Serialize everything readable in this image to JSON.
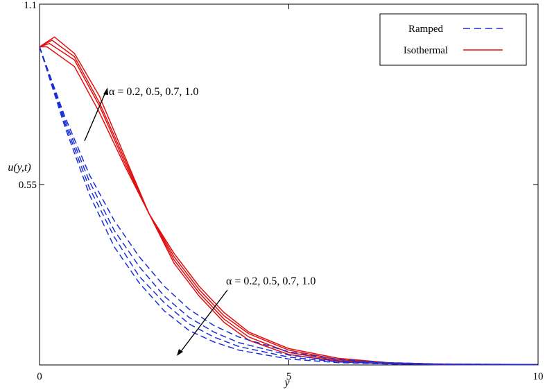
{
  "chart_data": {
    "type": "line",
    "xlabel": "y",
    "ylabel": "u(y,t)",
    "xlim": [
      0,
      10
    ],
    "ylim": [
      0,
      1.1
    ],
    "x_ticks": [
      "0",
      "5",
      "10"
    ],
    "y_ticks": [
      "1.1",
      "0.55"
    ],
    "grid": false,
    "legend_position": "top-right",
    "legend": [
      {
        "label": "Ramped",
        "style": "dashed",
        "color": "#1a2fd6"
      },
      {
        "label": "Isothermal",
        "style": "solid",
        "color": "#e01010"
      }
    ],
    "annotations": [
      {
        "text": "α = 0.2, 0.5, 0.7, 1.0",
        "refers_to": "Isothermal",
        "arrow": "up-right"
      },
      {
        "text": "α = 0.2, 0.5, 0.7, 1.0",
        "refers_to": "Ramped",
        "arrow": "down-left"
      }
    ],
    "series": [
      {
        "group": "Isothermal",
        "color": "#e01010",
        "style": "solid",
        "alpha": 0.2,
        "points": [
          [
            0,
            0.97
          ],
          [
            0.3,
            1.0
          ],
          [
            0.7,
            0.95
          ],
          [
            1.2,
            0.82
          ],
          [
            1.7,
            0.64
          ],
          [
            2.2,
            0.46
          ],
          [
            2.7,
            0.34
          ],
          [
            3.2,
            0.24
          ],
          [
            3.7,
            0.16
          ],
          [
            4.2,
            0.1
          ],
          [
            5,
            0.05
          ],
          [
            6,
            0.02
          ],
          [
            7,
            0.007
          ],
          [
            8,
            0.003
          ],
          [
            10,
            0.001
          ]
        ]
      },
      {
        "group": "Isothermal",
        "color": "#e01010",
        "style": "solid",
        "alpha": 0.5,
        "points": [
          [
            0,
            0.97
          ],
          [
            0.25,
            0.99
          ],
          [
            0.7,
            0.94
          ],
          [
            1.2,
            0.8
          ],
          [
            1.7,
            0.63
          ],
          [
            2.2,
            0.46
          ],
          [
            2.7,
            0.33
          ],
          [
            3.2,
            0.23
          ],
          [
            3.7,
            0.15
          ],
          [
            4.2,
            0.095
          ],
          [
            5,
            0.045
          ],
          [
            6,
            0.016
          ],
          [
            7,
            0.006
          ],
          [
            8,
            0.002
          ],
          [
            10,
            0.001
          ]
        ]
      },
      {
        "group": "Isothermal",
        "color": "#e01010",
        "style": "solid",
        "alpha": 0.7,
        "points": [
          [
            0,
            0.97
          ],
          [
            0.2,
            0.98
          ],
          [
            0.7,
            0.93
          ],
          [
            1.2,
            0.79
          ],
          [
            1.7,
            0.62
          ],
          [
            2.2,
            0.46
          ],
          [
            2.7,
            0.32
          ],
          [
            3.2,
            0.22
          ],
          [
            3.7,
            0.14
          ],
          [
            4.2,
            0.085
          ],
          [
            5,
            0.038
          ],
          [
            6,
            0.013
          ],
          [
            7,
            0.005
          ],
          [
            8,
            0.002
          ],
          [
            10,
            0.001
          ]
        ]
      },
      {
        "group": "Isothermal",
        "color": "#e01010",
        "style": "solid",
        "alpha": 1.0,
        "points": [
          [
            0,
            0.97
          ],
          [
            0.15,
            0.97
          ],
          [
            0.7,
            0.91
          ],
          [
            1.2,
            0.77
          ],
          [
            1.7,
            0.61
          ],
          [
            2.2,
            0.46
          ],
          [
            2.7,
            0.31
          ],
          [
            3.2,
            0.21
          ],
          [
            3.7,
            0.13
          ],
          [
            4.2,
            0.075
          ],
          [
            5,
            0.032
          ],
          [
            6,
            0.01
          ],
          [
            7,
            0.004
          ],
          [
            8,
            0.001
          ],
          [
            10,
            0.0005
          ]
        ]
      },
      {
        "group": "Ramped",
        "color": "#1a2fd6",
        "style": "dashed",
        "alpha": 0.2,
        "points": [
          [
            0,
            0.97
          ],
          [
            0.5,
            0.76
          ],
          [
            1,
            0.58
          ],
          [
            1.5,
            0.44
          ],
          [
            2,
            0.33
          ],
          [
            2.5,
            0.24
          ],
          [
            3,
            0.17
          ],
          [
            3.5,
            0.12
          ],
          [
            4,
            0.085
          ],
          [
            5,
            0.04
          ],
          [
            6,
            0.017
          ],
          [
            7,
            0.007
          ],
          [
            8,
            0.003
          ],
          [
            10,
            0.001
          ]
        ]
      },
      {
        "group": "Ramped",
        "color": "#1a2fd6",
        "style": "dashed",
        "alpha": 0.5,
        "points": [
          [
            0,
            0.97
          ],
          [
            0.5,
            0.75
          ],
          [
            1,
            0.56
          ],
          [
            1.5,
            0.41
          ],
          [
            2,
            0.3
          ],
          [
            2.5,
            0.21
          ],
          [
            3,
            0.145
          ],
          [
            3.5,
            0.1
          ],
          [
            4,
            0.068
          ],
          [
            5,
            0.03
          ],
          [
            6,
            0.012
          ],
          [
            7,
            0.005
          ],
          [
            8,
            0.002
          ],
          [
            10,
            0.001
          ]
        ]
      },
      {
        "group": "Ramped",
        "color": "#1a2fd6",
        "style": "dashed",
        "alpha": 0.7,
        "points": [
          [
            0,
            0.97
          ],
          [
            0.5,
            0.74
          ],
          [
            1,
            0.54
          ],
          [
            1.5,
            0.39
          ],
          [
            2,
            0.27
          ],
          [
            2.5,
            0.19
          ],
          [
            3,
            0.125
          ],
          [
            3.5,
            0.085
          ],
          [
            4,
            0.056
          ],
          [
            5,
            0.024
          ],
          [
            6,
            0.009
          ],
          [
            7,
            0.004
          ],
          [
            8,
            0.0015
          ],
          [
            10,
            0.0005
          ]
        ]
      },
      {
        "group": "Ramped",
        "color": "#1a2fd6",
        "style": "dashed",
        "alpha": 1.0,
        "points": [
          [
            0,
            0.97
          ],
          [
            0.5,
            0.73
          ],
          [
            1,
            0.52
          ],
          [
            1.5,
            0.36
          ],
          [
            2,
            0.25
          ],
          [
            2.5,
            0.165
          ],
          [
            3,
            0.105
          ],
          [
            3.5,
            0.07
          ],
          [
            4,
            0.045
          ],
          [
            5,
            0.018
          ],
          [
            6,
            0.007
          ],
          [
            7,
            0.003
          ],
          [
            8,
            0.001
          ],
          [
            10,
            0.0005
          ]
        ]
      }
    ]
  }
}
